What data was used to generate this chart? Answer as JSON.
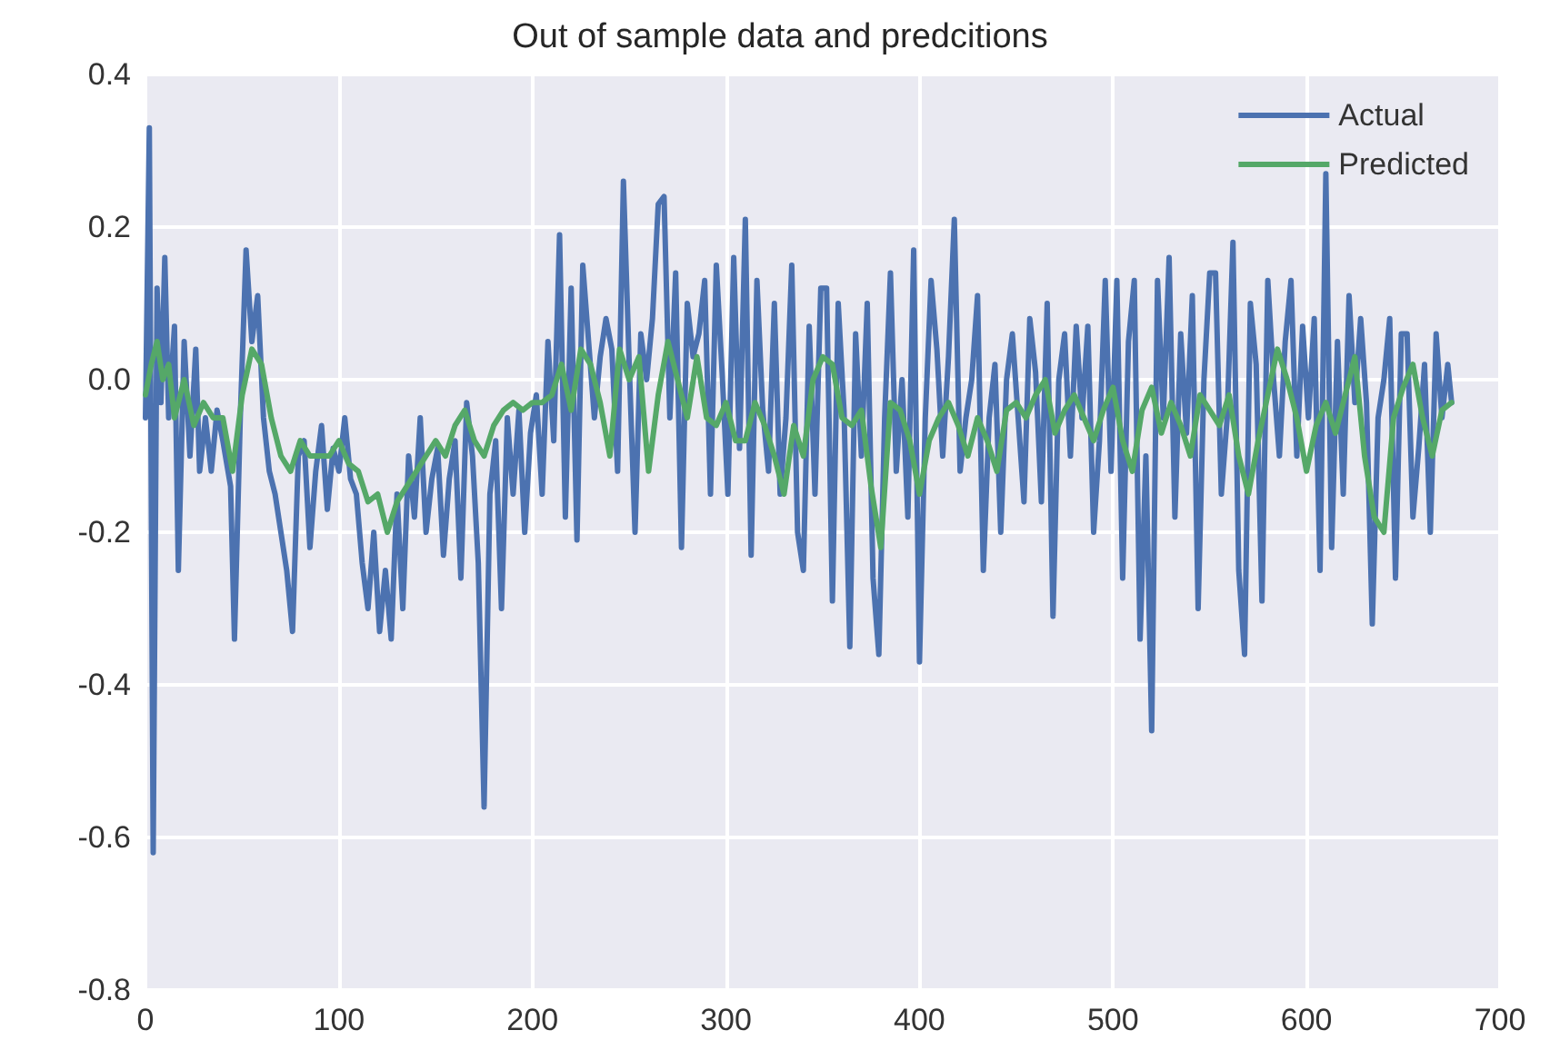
{
  "chart_data": {
    "type": "line",
    "title": "Out of sample data and predcitions",
    "xlim": [
      0,
      700
    ],
    "xticks": [
      0,
      100,
      200,
      300,
      400,
      500,
      600,
      700
    ],
    "ylim": [
      -0.8,
      0.4
    ],
    "yticks": [
      {
        "value": -0.8,
        "label": "-0.8"
      },
      {
        "value": -0.6,
        "label": "-0.6"
      },
      {
        "value": -0.4,
        "label": "-0.4"
      },
      {
        "value": -0.2,
        "label": "-0.2"
      },
      {
        "value": 0,
        "label": "0.0"
      },
      {
        "value": 0.2,
        "label": "0.2"
      },
      {
        "value": 0.4,
        "label": "0.4"
      }
    ],
    "grid": true,
    "legend": "top right",
    "marker": "none",
    "line_style": "solid",
    "series": [
      {
        "name": "Actual",
        "color": "#4c72b0",
        "x": [
          0,
          2,
          4,
          6,
          8,
          10,
          12,
          15,
          17,
          20,
          23,
          26,
          28,
          31,
          34,
          37,
          40,
          44,
          46,
          49,
          52,
          55,
          58,
          61,
          64,
          67,
          70,
          73,
          76,
          79,
          82,
          85,
          88,
          91,
          94,
          97,
          100,
          103,
          106,
          109,
          112,
          115,
          118,
          121,
          124,
          127,
          130,
          133,
          136,
          139,
          142,
          145,
          148,
          151,
          154,
          157,
          160,
          163,
          166,
          169,
          172,
          175,
          178,
          181,
          184,
          187,
          190,
          193,
          196,
          199,
          202,
          205,
          208,
          211,
          214,
          217,
          220,
          223,
          226,
          229,
          232,
          235,
          238,
          241,
          244,
          247,
          250,
          253,
          256,
          259,
          262,
          265,
          268,
          271,
          274,
          277,
          280,
          283,
          286,
          289,
          292,
          295,
          298,
          301,
          304,
          307,
          310,
          313,
          316,
          319,
          322,
          325,
          328,
          331,
          334,
          337,
          340,
          343,
          346,
          349,
          352,
          355,
          358,
          361,
          364,
          367,
          370,
          373,
          376,
          379,
          382,
          385,
          388,
          391,
          394,
          397,
          400,
          403,
          406,
          409,
          412,
          415,
          418,
          421,
          424,
          427,
          430,
          433,
          436,
          439,
          442,
          445,
          448,
          451,
          454,
          457,
          460,
          463,
          466,
          469,
          472,
          475,
          478,
          481,
          484,
          487,
          490,
          493,
          496,
          499,
          502,
          505,
          508,
          511,
          514,
          517,
          520,
          523,
          526,
          529,
          532,
          535,
          538,
          541,
          544,
          547,
          550,
          553,
          556,
          559,
          562,
          565,
          568,
          571,
          574,
          577,
          580,
          583,
          586,
          589,
          592,
          595,
          598,
          601,
          604,
          607,
          610,
          613,
          616,
          619,
          622,
          625,
          628,
          631,
          634,
          637,
          640,
          643,
          646,
          649,
          652,
          655,
          658,
          661,
          664,
          667,
          670,
          673,
          675
        ],
        "values": [
          -0.05,
          0.33,
          -0.62,
          0.12,
          -0.03,
          0.16,
          -0.05,
          0.07,
          -0.25,
          0.05,
          -0.1,
          0.04,
          -0.12,
          -0.05,
          -0.12,
          -0.04,
          -0.08,
          -0.14,
          -0.34,
          -0.05,
          0.17,
          0.05,
          0.11,
          -0.05,
          -0.12,
          -0.15,
          -0.2,
          -0.25,
          -0.33,
          -0.1,
          -0.08,
          -0.22,
          -0.12,
          -0.06,
          -0.17,
          -0.09,
          -0.12,
          -0.05,
          -0.13,
          -0.15,
          -0.24,
          -0.3,
          -0.2,
          -0.33,
          -0.25,
          -0.34,
          -0.15,
          -0.3,
          -0.1,
          -0.18,
          -0.05,
          -0.2,
          -0.13,
          -0.09,
          -0.23,
          -0.13,
          -0.08,
          -0.26,
          -0.03,
          -0.1,
          -0.24,
          -0.56,
          -0.15,
          -0.08,
          -0.3,
          -0.05,
          -0.15,
          -0.04,
          -0.2,
          -0.07,
          -0.02,
          -0.15,
          0.05,
          -0.08,
          0.19,
          -0.18,
          0.12,
          -0.21,
          0.15,
          0.05,
          -0.05,
          0.03,
          0.08,
          0.04,
          -0.12,
          0.26,
          0.02,
          -0.2,
          0.06,
          0,
          0.08,
          0.23,
          0.24,
          -0.05,
          0.14,
          -0.22,
          0.1,
          0.03,
          0.06,
          0.13,
          -0.15,
          0.15,
          0.01,
          -0.15,
          0.16,
          -0.09,
          0.21,
          -0.23,
          0.13,
          -0.04,
          -0.12,
          0.1,
          -0.15,
          -0.05,
          0.15,
          -0.2,
          -0.25,
          0.07,
          -0.15,
          0.12,
          0.12,
          -0.29,
          0.1,
          -0.04,
          -0.35,
          0.06,
          -0.1,
          0.1,
          -0.26,
          -0.36,
          -0.05,
          0.14,
          -0.12,
          0,
          -0.18,
          0.17,
          -0.37,
          -0.05,
          0.13,
          0.04,
          -0.1,
          0.03,
          0.21,
          -0.12,
          -0.05,
          0,
          0.11,
          -0.25,
          -0.05,
          0.02,
          -0.2,
          0,
          0.06,
          -0.05,
          -0.16,
          0.08,
          0.01,
          -0.16,
          0.1,
          -0.31,
          0,
          0.06,
          -0.1,
          0.07,
          -0.05,
          0.07,
          -0.2,
          -0.08,
          0.13,
          -0.12,
          0.13,
          -0.26,
          0.05,
          0.13,
          -0.34,
          -0.1,
          -0.46,
          0.13,
          -0.05,
          0.16,
          -0.18,
          0.06,
          -0.07,
          0.11,
          -0.3,
          0,
          0.14,
          0.14,
          -0.15,
          -0.05,
          0.18,
          -0.25,
          -0.36,
          0.1,
          0.02,
          -0.29,
          0.13,
          0,
          -0.1,
          0.05,
          0.13,
          -0.1,
          0.07,
          -0.05,
          0.08,
          -0.25,
          0.27,
          -0.22,
          0.05,
          -0.15,
          0.11,
          -0.03,
          0.08,
          -0.03,
          -0.32,
          -0.05,
          0,
          0.08,
          -0.26,
          0.06,
          0.06,
          -0.18,
          -0.09,
          0.02,
          -0.2,
          0.06,
          -0.05,
          0.02,
          -0.03
        ]
      },
      {
        "name": "Predicted",
        "color": "#55a868",
        "x": [
          0,
          3,
          6,
          9,
          12,
          15,
          20,
          25,
          30,
          35,
          40,
          45,
          50,
          55,
          60,
          65,
          70,
          75,
          80,
          85,
          90,
          95,
          100,
          105,
          110,
          115,
          120,
          125,
          130,
          135,
          140,
          145,
          150,
          155,
          160,
          165,
          170,
          175,
          180,
          185,
          190,
          195,
          200,
          205,
          210,
          215,
          220,
          225,
          230,
          235,
          240,
          245,
          250,
          255,
          260,
          265,
          270,
          275,
          280,
          285,
          290,
          295,
          300,
          305,
          310,
          315,
          320,
          325,
          330,
          335,
          340,
          345,
          350,
          355,
          360,
          365,
          370,
          375,
          380,
          385,
          390,
          395,
          400,
          405,
          410,
          415,
          420,
          425,
          430,
          435,
          440,
          445,
          450,
          455,
          460,
          465,
          470,
          475,
          480,
          485,
          490,
          495,
          500,
          505,
          510,
          515,
          520,
          525,
          530,
          535,
          540,
          545,
          550,
          555,
          560,
          565,
          570,
          575,
          580,
          585,
          590,
          595,
          600,
          605,
          610,
          615,
          620,
          625,
          630,
          635,
          640,
          645,
          650,
          655,
          660,
          665,
          670,
          675
        ],
        "values": [
          -0.02,
          0.02,
          0.05,
          0,
          0.02,
          -0.05,
          0,
          -0.06,
          -0.03,
          -0.05,
          -0.05,
          -0.12,
          -0.02,
          0.04,
          0.02,
          -0.05,
          -0.1,
          -0.12,
          -0.08,
          -0.1,
          -0.1,
          -0.1,
          -0.08,
          -0.11,
          -0.12,
          -0.16,
          -0.15,
          -0.2,
          -0.16,
          -0.14,
          -0.12,
          -0.1,
          -0.08,
          -0.1,
          -0.06,
          -0.04,
          -0.08,
          -0.1,
          -0.06,
          -0.04,
          -0.03,
          -0.04,
          -0.03,
          -0.03,
          -0.02,
          0.02,
          -0.04,
          0.04,
          0.02,
          -0.03,
          -0.1,
          0.04,
          0,
          0.03,
          -0.12,
          -0.02,
          0.05,
          0,
          -0.05,
          0.03,
          -0.05,
          -0.06,
          -0.03,
          -0.08,
          -0.08,
          -0.03,
          -0.06,
          -0.1,
          -0.15,
          -0.06,
          -0.1,
          0,
          0.03,
          0.02,
          -0.05,
          -0.06,
          -0.04,
          -0.14,
          -0.22,
          -0.03,
          -0.04,
          -0.08,
          -0.15,
          -0.08,
          -0.05,
          -0.03,
          -0.06,
          -0.1,
          -0.05,
          -0.08,
          -0.12,
          -0.04,
          -0.03,
          -0.05,
          -0.02,
          0,
          -0.07,
          -0.04,
          -0.02,
          -0.05,
          -0.08,
          -0.04,
          -0.01,
          -0.08,
          -0.12,
          -0.04,
          -0.01,
          -0.07,
          -0.03,
          -0.06,
          -0.1,
          -0.02,
          -0.04,
          -0.06,
          -0.02,
          -0.1,
          -0.15,
          -0.08,
          -0.02,
          0.04,
          0,
          -0.05,
          -0.12,
          -0.06,
          -0.03,
          -0.07,
          -0.02,
          0.03,
          -0.1,
          -0.18,
          -0.2,
          -0.05,
          -0.01,
          0.02,
          -0.05,
          -0.1,
          -0.04,
          -0.03
        ]
      }
    ]
  }
}
